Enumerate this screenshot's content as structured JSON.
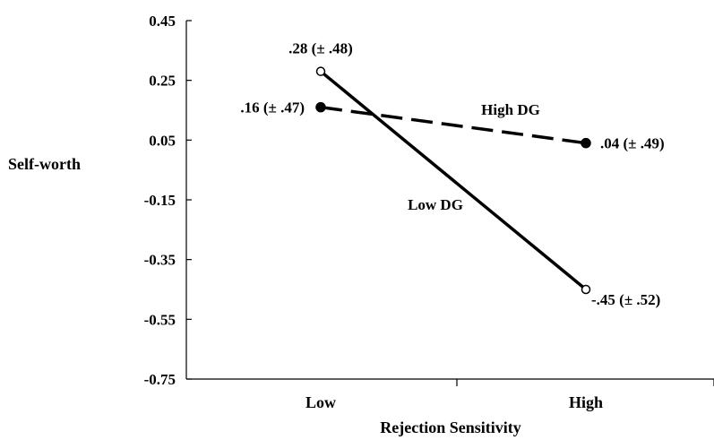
{
  "chart_data": {
    "type": "line",
    "title": "",
    "xlabel": "Rejection Sensitivity",
    "ylabel": "Self-worth",
    "categories": [
      "Low",
      "High"
    ],
    "ylim": [
      -0.75,
      0.45
    ],
    "yticks": [
      "0.45",
      "0.25",
      "0.05",
      "-0.15",
      "-0.35",
      "-0.55",
      "-0.75"
    ],
    "series": [
      {
        "name": "High DG",
        "values": [
          0.16,
          0.04
        ],
        "labels": [
          ".16 (± .47)",
          ".04 (± .49)"
        ],
        "line": "dashed",
        "marker": "filled-circle"
      },
      {
        "name": "Low DG",
        "values": [
          0.28,
          -0.45
        ],
        "labels": [
          ".28 (± .48)",
          "-.45 (± .52)"
        ],
        "line": "solid",
        "marker": "open-circle"
      }
    ],
    "grid": false,
    "legend": "none"
  }
}
